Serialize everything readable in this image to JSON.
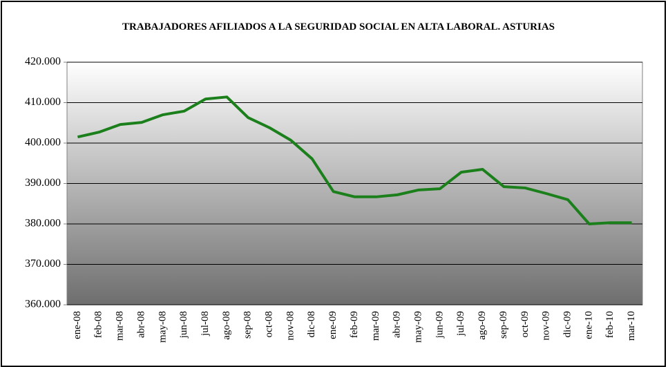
{
  "chart_data": {
    "type": "line",
    "title": "TRABAJADORES AFILIADOS A LA SEGURIDAD SOCIAL EN ALTA LABORAL. ASTURIAS",
    "categories": [
      "ene-08",
      "feb-08",
      "mar-08",
      "abr-08",
      "may-08",
      "jun-08",
      "jul-08",
      "ago-08",
      "sep-08",
      "oct-08",
      "nov-08",
      "dic-08",
      "ene-09",
      "feb-09",
      "mar-09",
      "abr-09",
      "may-09",
      "jun-09",
      "jul-09",
      "ago-09",
      "sep-09",
      "oct-09",
      "nov-09",
      "dic-09",
      "ene-10",
      "feb-10",
      "mar-10"
    ],
    "values": [
      401500,
      402700,
      404600,
      405100,
      407000,
      407900,
      410900,
      411400,
      406300,
      403800,
      400700,
      396100,
      388000,
      386700,
      386700,
      387200,
      388400,
      388700,
      392800,
      393500,
      389200,
      388900,
      387500,
      386000,
      380000,
      380300,
      380300
    ],
    "color": "#1b801b",
    "ylim": [
      360000,
      420000
    ],
    "yticks": [
      {
        "value": 360000,
        "label": "360.000"
      },
      {
        "value": 370000,
        "label": "370.000"
      },
      {
        "value": 380000,
        "label": "380.000"
      },
      {
        "value": 390000,
        "label": "390.000"
      },
      {
        "value": 400000,
        "label": "400.000"
      },
      {
        "value": 410000,
        "label": "410.000"
      },
      {
        "value": 420000,
        "label": "420.000"
      }
    ],
    "grid": true
  }
}
